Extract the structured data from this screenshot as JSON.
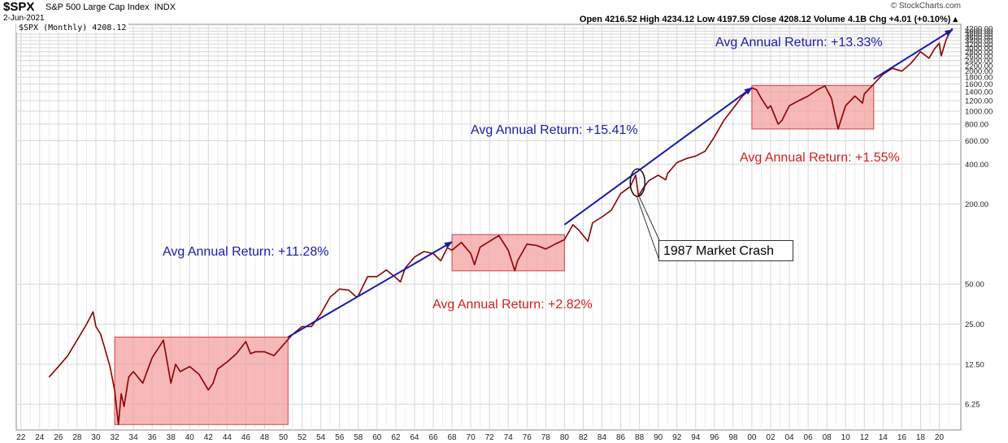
{
  "header": {
    "symbol": "$SPX",
    "name": "S&P 500 Large Cap Index",
    "exchange": "INDX",
    "date": "2-Jun-2021",
    "source": "© StockCharts.com",
    "ohlc_text": "Open 4216.52  High 4234.12  Low 4197.59  Close 4208.12  Volume 4.1B  Chg +4.01 (+0.10%) ▴"
  },
  "legend": "$SPX (Monthly) 4208.12",
  "annotations": {
    "blue_1": "Avg Annual Return:  +11.28%",
    "blue_2": "Avg Annual Return:  +15.41%",
    "blue_3": "Avg Annual Return:  +13.33%",
    "red_1": "Avg Annual Return:  +2.82%",
    "red_2": "Avg Annual Return:  +1.55%",
    "crash": "1987 Market Crash"
  },
  "colors": {
    "price_line": "#8b0000",
    "trend_arrow": "#1a1aa8",
    "flat_box_fill": "#f4a0a0",
    "flat_box_stroke": "#d04040",
    "grid": "#d6d6d6"
  },
  "chart_data": {
    "type": "line",
    "title": "$SPX S&P 500 Large Cap Index",
    "series": [
      {
        "name": "$SPX (Monthly)",
        "points": [
          [
            1925.0,
            10.0
          ],
          [
            1926.0,
            12.0
          ],
          [
            1927.0,
            14.5
          ],
          [
            1928.0,
            19.0
          ],
          [
            1929.0,
            25.0
          ],
          [
            1929.7,
            31.0
          ],
          [
            1930.0,
            24.0
          ],
          [
            1930.5,
            21.0
          ],
          [
            1931.0,
            16.0
          ],
          [
            1931.5,
            12.0
          ],
          [
            1932.0,
            8.0
          ],
          [
            1932.4,
            4.4
          ],
          [
            1932.7,
            7.5
          ],
          [
            1933.0,
            6.0
          ],
          [
            1933.5,
            10.0
          ],
          [
            1934.0,
            11.0
          ],
          [
            1935.0,
            9.0
          ],
          [
            1936.0,
            14.0
          ],
          [
            1937.0,
            18.0
          ],
          [
            1937.2,
            19.0
          ],
          [
            1938.0,
            9.0
          ],
          [
            1938.5,
            12.5
          ],
          [
            1939.0,
            11.0
          ],
          [
            1940.0,
            12.0
          ],
          [
            1941.0,
            10.5
          ],
          [
            1942.0,
            8.0
          ],
          [
            1942.5,
            9.0
          ],
          [
            1943.0,
            11.5
          ],
          [
            1944.0,
            13.0
          ],
          [
            1945.0,
            15.0
          ],
          [
            1946.0,
            18.5
          ],
          [
            1946.5,
            15.0
          ],
          [
            1947.0,
            15.5
          ],
          [
            1948.0,
            15.5
          ],
          [
            1949.0,
            14.5
          ],
          [
            1950.0,
            17.5
          ],
          [
            1951.0,
            21.0
          ],
          [
            1952.0,
            24.0
          ],
          [
            1953.0,
            24.0
          ],
          [
            1954.0,
            30.0
          ],
          [
            1955.0,
            40.0
          ],
          [
            1956.0,
            46.0
          ],
          [
            1957.0,
            45.0
          ],
          [
            1957.8,
            40.0
          ],
          [
            1958.0,
            41.0
          ],
          [
            1959.0,
            57.0
          ],
          [
            1960.0,
            57.0
          ],
          [
            1961.0,
            64.0
          ],
          [
            1962.0,
            56.0
          ],
          [
            1962.5,
            52.0
          ],
          [
            1963.0,
            66.0
          ],
          [
            1964.0,
            80.0
          ],
          [
            1965.0,
            88.0
          ],
          [
            1966.0,
            85.0
          ],
          [
            1966.8,
            75.0
          ],
          [
            1967.5,
            94.0
          ],
          [
            1968.0,
            90.0
          ],
          [
            1969.0,
            103.0
          ],
          [
            1970.0,
            85.0
          ],
          [
            1970.4,
            70.0
          ],
          [
            1971.0,
            95.0
          ],
          [
            1972.0,
            105.0
          ],
          [
            1973.0,
            116.0
          ],
          [
            1974.0,
            90.0
          ],
          [
            1974.7,
            63.0
          ],
          [
            1975.0,
            75.0
          ],
          [
            1976.0,
            100.0
          ],
          [
            1977.0,
            98.0
          ],
          [
            1978.0,
            92.0
          ],
          [
            1979.0,
            100.0
          ],
          [
            1980.0,
            108.0
          ],
          [
            1980.9,
            140.0
          ],
          [
            1981.5,
            128.0
          ],
          [
            1982.5,
            105.0
          ],
          [
            1983.0,
            145.0
          ],
          [
            1984.0,
            160.0
          ],
          [
            1985.0,
            180.0
          ],
          [
            1986.0,
            240.0
          ],
          [
            1987.0,
            270.0
          ],
          [
            1987.6,
            330.0
          ],
          [
            1987.9,
            230.0
          ],
          [
            1988.5,
            270.0
          ],
          [
            1989.0,
            300.0
          ],
          [
            1990.0,
            330.0
          ],
          [
            1990.8,
            305.0
          ],
          [
            1991.0,
            340.0
          ],
          [
            1992.0,
            410.0
          ],
          [
            1993.0,
            440.0
          ],
          [
            1994.0,
            460.0
          ],
          [
            1995.0,
            500.0
          ],
          [
            1996.0,
            640.0
          ],
          [
            1997.0,
            850.0
          ],
          [
            1998.0,
            1050.0
          ],
          [
            1999.0,
            1300.0
          ],
          [
            2000.0,
            1500.0
          ],
          [
            2000.5,
            1450.0
          ],
          [
            2001.0,
            1250.0
          ],
          [
            2001.7,
            1050.0
          ],
          [
            2002.0,
            1100.0
          ],
          [
            2002.8,
            800.0
          ],
          [
            2003.2,
            850.0
          ],
          [
            2004.0,
            1100.0
          ],
          [
            2005.0,
            1200.0
          ],
          [
            2006.0,
            1300.0
          ],
          [
            2007.0,
            1450.0
          ],
          [
            2007.8,
            1550.0
          ],
          [
            2008.5,
            1250.0
          ],
          [
            2009.2,
            735.0
          ],
          [
            2010.0,
            1100.0
          ],
          [
            2011.0,
            1300.0
          ],
          [
            2011.8,
            1150.0
          ],
          [
            2012.0,
            1350.0
          ],
          [
            2013.0,
            1600.0
          ],
          [
            2014.0,
            1900.0
          ],
          [
            2015.0,
            2100.0
          ],
          [
            2016.0,
            2000.0
          ],
          [
            2017.0,
            2300.0
          ],
          [
            2018.0,
            2800.0
          ],
          [
            2018.9,
            2500.0
          ],
          [
            2019.5,
            2950.0
          ],
          [
            2020.0,
            3250.0
          ],
          [
            2020.2,
            2600.0
          ],
          [
            2020.7,
            3400.0
          ],
          [
            2021.0,
            3800.0
          ],
          [
            2021.4,
            4208.12
          ]
        ]
      }
    ],
    "x_tick_labels": [
      "22",
      "24",
      "26",
      "28",
      "30",
      "32",
      "34",
      "36",
      "38",
      "40",
      "42",
      "44",
      "46",
      "48",
      "50",
      "52",
      "54",
      "56",
      "58",
      "60",
      "62",
      "64",
      "66",
      "68",
      "70",
      "72",
      "74",
      "76",
      "78",
      "80",
      "82",
      "84",
      "86",
      "88",
      "90",
      "92",
      "94",
      "96",
      "98",
      "00",
      "02",
      "04",
      "06",
      "08",
      "10",
      "12",
      "14",
      "16",
      "18",
      "20"
    ],
    "x_tick_years": [
      1922,
      1924,
      1926,
      1928,
      1930,
      1932,
      1934,
      1936,
      1938,
      1940,
      1942,
      1944,
      1946,
      1948,
      1950,
      1952,
      1954,
      1956,
      1958,
      1960,
      1962,
      1964,
      1966,
      1968,
      1970,
      1972,
      1974,
      1976,
      1978,
      1980,
      1982,
      1984,
      1986,
      1988,
      1990,
      1992,
      1994,
      1996,
      1998,
      2000,
      2002,
      2004,
      2006,
      2008,
      2010,
      2012,
      2014,
      2016,
      2018,
      2020
    ],
    "y_tick_labels": [
      "4200.00",
      "4000.00",
      "3800.00",
      "3600.00",
      "3400.00",
      "3200.00",
      "3000.00",
      "2800.00",
      "2600.00",
      "2400.00",
      "2200.00",
      "2000.00",
      "1800.00",
      "1600.00",
      "1400.00",
      "1200.00",
      "1000.00",
      "800.00",
      "600.00",
      "400.00",
      "200.00",
      "50.00",
      "25.00",
      "12.50",
      "6.25"
    ],
    "y_tick_values": [
      4200,
      4000,
      3800,
      3600,
      3400,
      3200,
      3000,
      2800,
      2600,
      2400,
      2200,
      2000,
      1800,
      1600,
      1400,
      1200,
      1000,
      800,
      600,
      400,
      200,
      50,
      25,
      12.5,
      6.25
    ],
    "x_range": [
      1921.5,
      2022.3
    ],
    "y_range": [
      4.0,
      4500.0
    ],
    "y_scale": "log",
    "grid": true,
    "legend_position": "top-left",
    "regions": [
      {
        "x0": 1932.0,
        "x1": 1950.5,
        "y0": 4.4,
        "y1": 20.0
      },
      {
        "x0": 1968.0,
        "x1": 1980.0,
        "y0": 63.0,
        "y1": 118.0
      },
      {
        "x0": 2000.0,
        "x1": 2013.0,
        "y0": 735.0,
        "y1": 1560.0
      }
    ],
    "arrows": [
      {
        "x0": 1950.5,
        "y0": 20.0,
        "x1": 1968.0,
        "y1": 104.0
      },
      {
        "x0": 1980.0,
        "y0": 140.0,
        "x1": 2000.0,
        "y1": 1500.0
      },
      {
        "x0": 2013.0,
        "y0": 1750.0,
        "x1": 2021.4,
        "y1": 4100.0
      }
    ],
    "crash_marker": {
      "x": 1987.8,
      "y": 290.0
    }
  }
}
